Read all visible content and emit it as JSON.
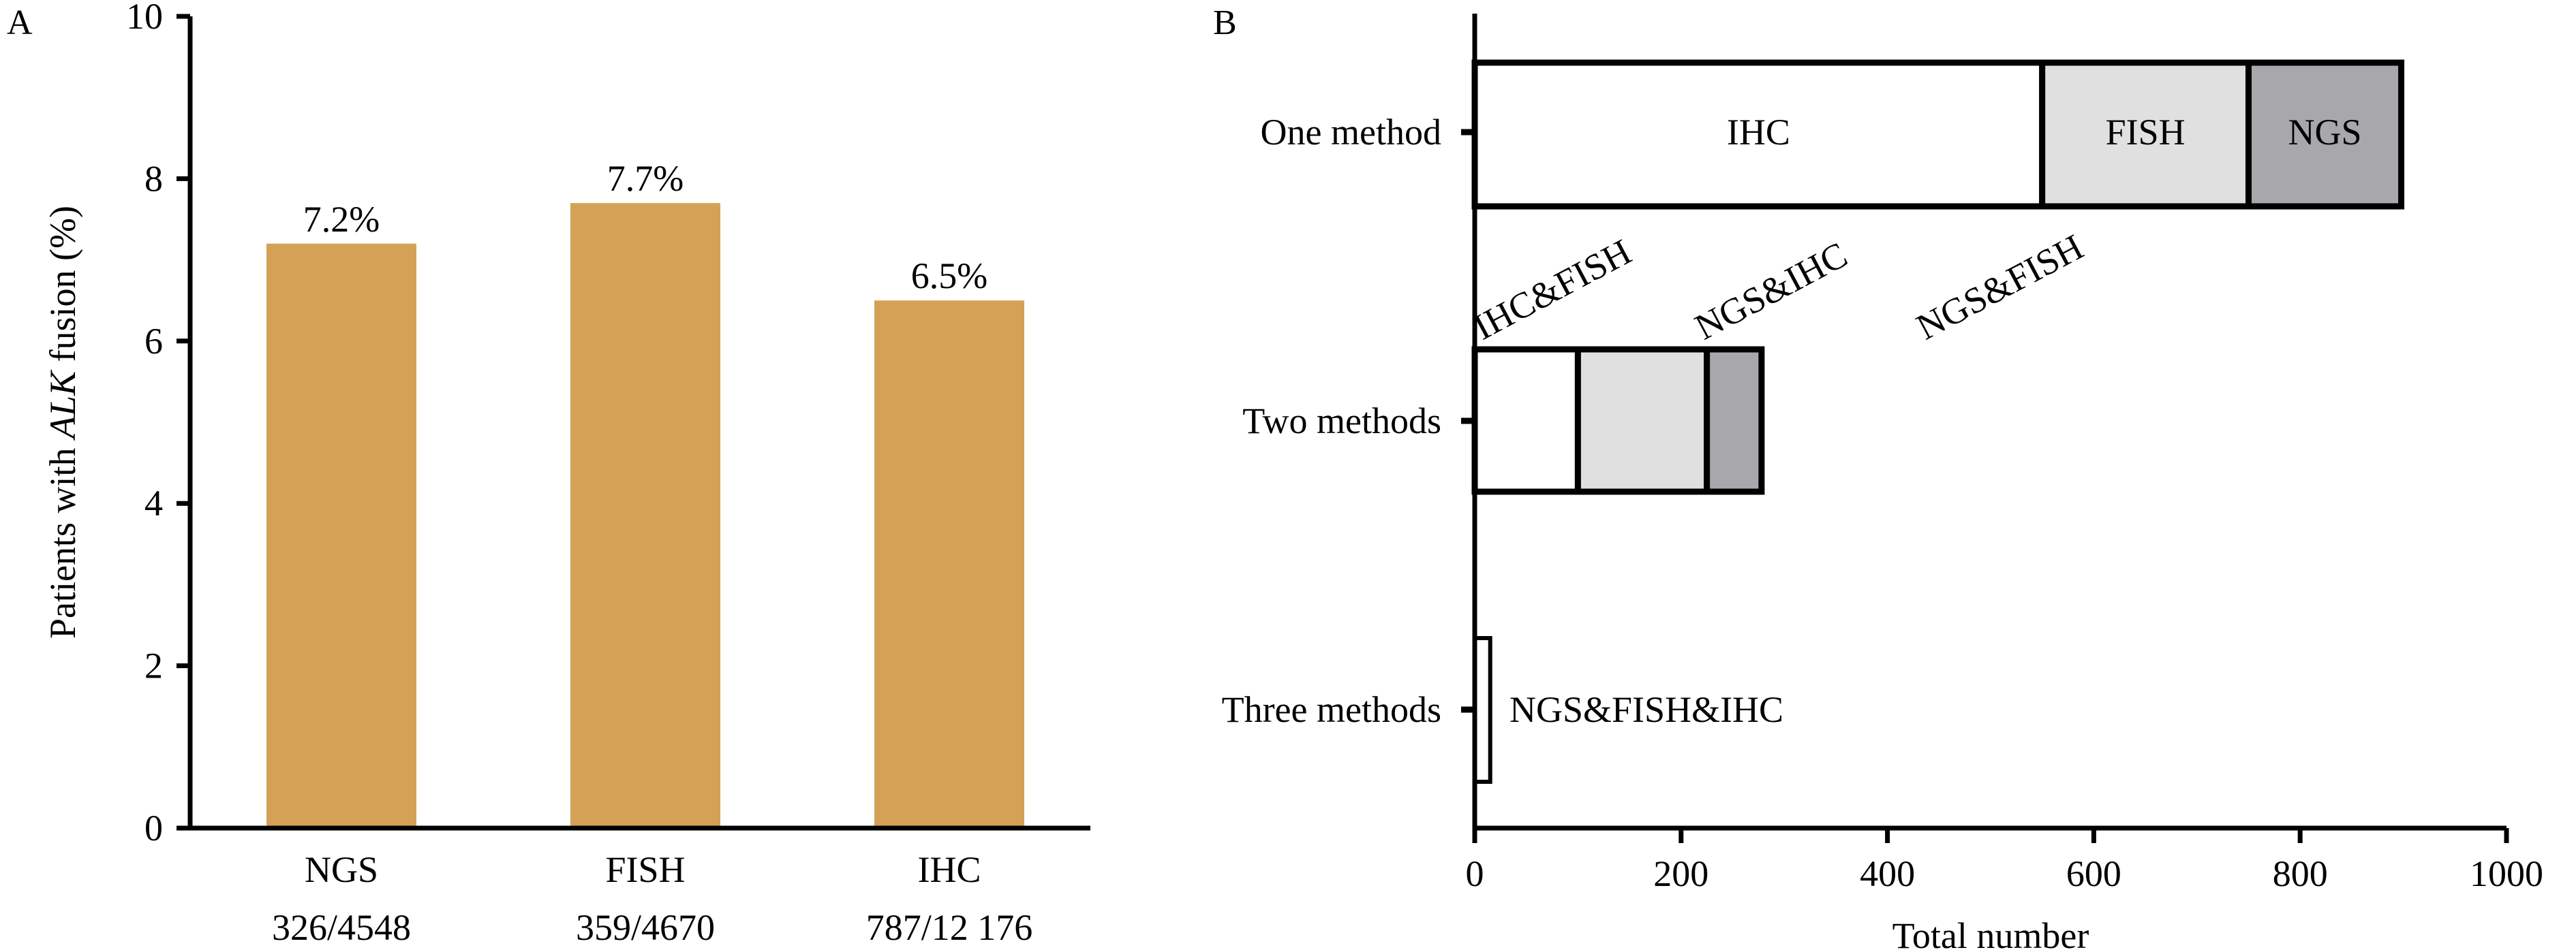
{
  "colors": {
    "bar_a": "#D4A257",
    "ihc": "#FFFFFF",
    "fish": "#E0E0E0",
    "ngs": "#A8A8AC",
    "axis": "#000000"
  },
  "chart_data": [
    {
      "panel_label": "A",
      "type": "bar",
      "categories": [
        "NGS",
        "FISH",
        "IHC"
      ],
      "category_sublabels": [
        "326/4548",
        "359/4670",
        "787/12 176"
      ],
      "values": [
        7.2,
        7.7,
        6.5
      ],
      "data_labels": [
        "7.2%",
        "7.7%",
        "6.5%"
      ],
      "ylabel_pre": "Patients with ",
      "ylabel_italic": "ALK",
      "ylabel_post": " fusion (%)",
      "ylim": [
        0,
        10
      ],
      "yticks": [
        0,
        2,
        4,
        6,
        8,
        10
      ],
      "grid": false
    },
    {
      "panel_label": "B",
      "type": "stacked-horizontal-bar",
      "categories": [
        "One method",
        "Two methods",
        "Three methods"
      ],
      "series_by_category": [
        [
          {
            "name": "IHC",
            "value": 550
          },
          {
            "name": "FISH",
            "value": 200
          },
          {
            "name": "NGS",
            "value": 148
          }
        ],
        [
          {
            "name": "IHC&FISH",
            "value": 100
          },
          {
            "name": "NGS&IHC",
            "value": 125
          },
          {
            "name": "NGS&FISH",
            "value": 53
          }
        ],
        [
          {
            "name": "NGS&FISH&IHC",
            "value": 15
          }
        ]
      ],
      "xlabel": "Total number",
      "xlim": [
        0,
        1000
      ],
      "xticks": [
        0,
        200,
        400,
        600,
        800,
        1000
      ],
      "grid": false
    }
  ]
}
